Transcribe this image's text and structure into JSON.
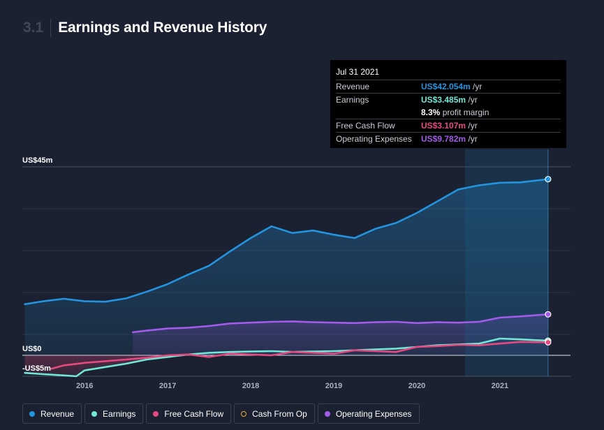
{
  "header": {
    "section_number": "3.1",
    "title": "Earnings and Revenue History"
  },
  "tooltip": {
    "date": "Jul 31 2021",
    "rows": [
      {
        "label": "Revenue",
        "value": "US$42.054m",
        "unit": " /yr",
        "color": "#2394df"
      },
      {
        "label": "Earnings",
        "value": "US$3.485m",
        "unit": " /yr",
        "color": "#71e7d6",
        "extra_value": "8.3%",
        "extra_text": " profit margin"
      },
      {
        "label": "Free Cash Flow",
        "value": "US$3.107m",
        "unit": " /yr",
        "color": "#e64980"
      },
      {
        "label": "Operating Expenses",
        "value": "US$9.782m",
        "unit": " /yr",
        "color": "#a25bea"
      }
    ]
  },
  "legend": [
    {
      "label": "Revenue",
      "color": "#2394df",
      "hollow": false
    },
    {
      "label": "Earnings",
      "color": "#71e7d6",
      "hollow": false
    },
    {
      "label": "Free Cash Flow",
      "color": "#e64980",
      "hollow": false
    },
    {
      "label": "Cash From Op",
      "color": "#f2a93b",
      "hollow": true
    },
    {
      "label": "Operating Expenses",
      "color": "#a25bea",
      "hollow": false
    }
  ],
  "chart_data": {
    "type": "area",
    "y_tick_labels": [
      "US$45m",
      "US$0",
      "-US$5m"
    ],
    "ylim": [
      -5,
      45
    ],
    "x_tick_labels": [
      "2016",
      "2017",
      "2018",
      "2019",
      "2020",
      "2021"
    ],
    "xlim": [
      2015.25,
      2021.85
    ],
    "highlight_range": [
      2020.58,
      2021.58
    ],
    "grid": true,
    "series": [
      {
        "name": "Revenue",
        "color": "#2394df",
        "x": [
          2015.28,
          2015.5,
          2015.75,
          2016.0,
          2016.25,
          2016.5,
          2016.75,
          2017.0,
          2017.25,
          2017.5,
          2017.75,
          2018.0,
          2018.25,
          2018.5,
          2018.75,
          2019.0,
          2019.25,
          2019.5,
          2019.75,
          2020.0,
          2020.25,
          2020.5,
          2020.75,
          2021.0,
          2021.25,
          2021.58
        ],
        "y": [
          12.2,
          12.9,
          13.5,
          12.9,
          12.8,
          13.6,
          15.2,
          17.0,
          19.3,
          21.4,
          24.8,
          28.0,
          30.8,
          29.2,
          29.8,
          28.8,
          28.0,
          30.2,
          31.6,
          34.0,
          36.8,
          39.6,
          40.6,
          41.2,
          41.3,
          42.054
        ]
      },
      {
        "name": "Operating Expenses",
        "color": "#a25bea",
        "x": [
          2016.58,
          2016.75,
          2017.0,
          2017.25,
          2017.5,
          2017.75,
          2018.0,
          2018.25,
          2018.5,
          2018.75,
          2019.0,
          2019.25,
          2019.5,
          2019.75,
          2020.0,
          2020.25,
          2020.5,
          2020.75,
          2021.0,
          2021.25,
          2021.58
        ],
        "y": [
          5.5,
          5.9,
          6.4,
          6.6,
          7.0,
          7.6,
          7.8,
          8.0,
          8.1,
          7.9,
          7.8,
          7.7,
          7.9,
          8.0,
          7.7,
          7.9,
          7.8,
          8.0,
          9.0,
          9.3,
          9.782
        ]
      },
      {
        "name": "Earnings",
        "color": "#71e7d6",
        "x": [
          2015.28,
          2015.5,
          2015.75,
          2015.9,
          2016.0,
          2016.25,
          2016.5,
          2016.75,
          2017.0,
          2017.25,
          2017.5,
          2017.75,
          2018.0,
          2018.25,
          2018.5,
          2018.75,
          2019.0,
          2019.25,
          2019.5,
          2019.75,
          2020.0,
          2020.25,
          2020.5,
          2020.75,
          2021.0,
          2021.25,
          2021.58
        ],
        "y": [
          -4.2,
          -4.5,
          -4.8,
          -5.0,
          -3.6,
          -2.8,
          -2.0,
          -1.0,
          -0.4,
          0.2,
          0.6,
          0.8,
          0.9,
          1.0,
          0.8,
          0.9,
          1.0,
          1.2,
          1.4,
          1.6,
          2.0,
          2.4,
          2.6,
          2.8,
          4.0,
          3.8,
          3.485
        ]
      },
      {
        "name": "Free Cash Flow",
        "color": "#e64980",
        "x": [
          2015.6,
          2015.75,
          2016.0,
          2016.25,
          2016.5,
          2016.75,
          2017.0,
          2017.25,
          2017.5,
          2017.75,
          2018.0,
          2018.25,
          2018.5,
          2018.75,
          2019.0,
          2019.25,
          2019.5,
          2019.75,
          2020.0,
          2020.25,
          2020.5,
          2020.75,
          2021.0,
          2021.25,
          2021.58
        ],
        "y": [
          -3.2,
          -2.4,
          -1.8,
          -1.4,
          -1.0,
          -0.6,
          0.0,
          0.2,
          -0.4,
          0.4,
          0.2,
          0.0,
          0.8,
          0.6,
          0.4,
          1.2,
          1.0,
          0.8,
          2.0,
          2.2,
          2.5,
          2.4,
          2.8,
          3.2,
          3.107
        ]
      }
    ]
  }
}
